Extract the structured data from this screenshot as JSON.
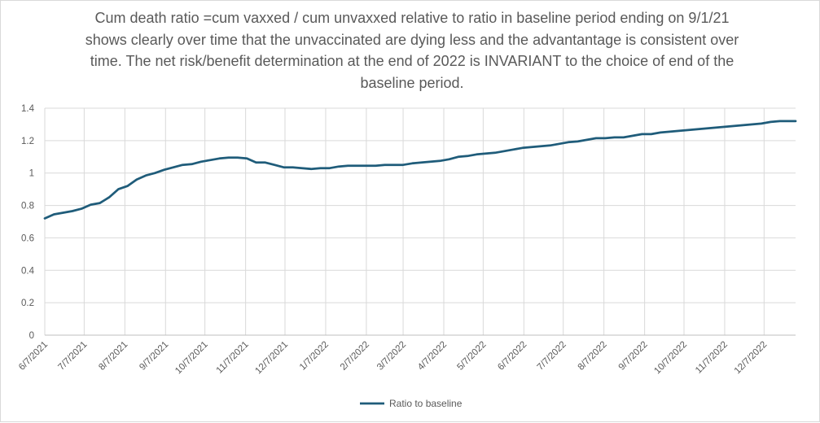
{
  "chart_data": {
    "type": "line",
    "title": "Cum death ratio =cum vaxxed / cum unvaxxed relative to ratio in baseline period ending on 9/1/21 shows clearly over time that the unvaccinated are dying less and the advantantage is consistent over time. The net risk/benefit determination at the end of 2022 is INVARIANT to the choice of end of the baseline period.",
    "xlabel": "",
    "ylabel": "",
    "ylim": [
      0,
      1.4
    ],
    "yticks": [
      "0",
      "0.2",
      "0.4",
      "0.6",
      "0.8",
      "1",
      "1.2",
      "1.4"
    ],
    "x_start": "6/7/2021",
    "x_end": "12/31/2022",
    "xticks": [
      "6/7/2021",
      "7/7/2021",
      "8/7/2021",
      "9/7/2021",
      "10/7/2021",
      "11/7/2021",
      "12/7/2021",
      "1/7/2022",
      "2/7/2022",
      "3/7/2022",
      "4/7/2022",
      "5/7/2022",
      "6/7/2022",
      "7/7/2022",
      "8/7/2022",
      "9/7/2022",
      "10/7/2022",
      "11/7/2022",
      "12/7/2022"
    ],
    "grid": true,
    "legend_position": "bottom",
    "series": [
      {
        "name": "Ratio to baseline",
        "color": "#1f5c7a",
        "x": [
          "6/7/2021",
          "6/14/2021",
          "6/21/2021",
          "6/28/2021",
          "7/5/2021",
          "7/12/2021",
          "7/19/2021",
          "7/26/2021",
          "8/2/2021",
          "8/9/2021",
          "8/16/2021",
          "8/23/2021",
          "8/30/2021",
          "9/6/2021",
          "9/13/2021",
          "9/20/2021",
          "9/27/2021",
          "10/4/2021",
          "10/11/2021",
          "10/18/2021",
          "10/25/2021",
          "11/1/2021",
          "11/8/2021",
          "11/15/2021",
          "11/22/2021",
          "11/29/2021",
          "12/6/2021",
          "12/13/2021",
          "12/20/2021",
          "12/27/2021",
          "1/3/2022",
          "1/10/2022",
          "1/17/2022",
          "1/24/2022",
          "1/31/2022",
          "2/7/2022",
          "2/14/2022",
          "2/21/2022",
          "2/28/2022",
          "3/7/2022",
          "3/14/2022",
          "3/21/2022",
          "3/28/2022",
          "4/4/2022",
          "4/11/2022",
          "4/18/2022",
          "4/25/2022",
          "5/2/2022",
          "5/9/2022",
          "5/16/2022",
          "5/23/2022",
          "5/30/2022",
          "6/6/2022",
          "6/13/2022",
          "6/20/2022",
          "6/27/2022",
          "7/4/2022",
          "7/11/2022",
          "7/18/2022",
          "7/25/2022",
          "8/1/2022",
          "8/8/2022",
          "8/15/2022",
          "8/22/2022",
          "8/29/2022",
          "9/5/2022",
          "9/12/2022",
          "9/19/2022",
          "9/26/2022",
          "10/3/2022",
          "10/10/2022",
          "10/17/2022",
          "10/24/2022",
          "10/31/2022",
          "11/7/2022",
          "11/14/2022",
          "11/21/2022",
          "11/28/2022",
          "12/5/2022",
          "12/12/2022",
          "12/19/2022",
          "12/26/2022",
          "12/31/2022"
        ],
        "values": [
          0.72,
          0.745,
          0.755,
          0.765,
          0.78,
          0.805,
          0.815,
          0.85,
          0.9,
          0.92,
          0.96,
          0.985,
          1.0,
          1.02,
          1.035,
          1.05,
          1.055,
          1.07,
          1.08,
          1.09,
          1.095,
          1.095,
          1.09,
          1.065,
          1.065,
          1.05,
          1.035,
          1.035,
          1.03,
          1.025,
          1.03,
          1.03,
          1.04,
          1.045,
          1.045,
          1.045,
          1.045,
          1.05,
          1.05,
          1.05,
          1.06,
          1.065,
          1.07,
          1.075,
          1.085,
          1.1,
          1.105,
          1.115,
          1.12,
          1.125,
          1.135,
          1.145,
          1.155,
          1.16,
          1.165,
          1.17,
          1.18,
          1.19,
          1.195,
          1.205,
          1.215,
          1.215,
          1.22,
          1.22,
          1.23,
          1.24,
          1.24,
          1.25,
          1.255,
          1.26,
          1.265,
          1.27,
          1.275,
          1.28,
          1.285,
          1.29,
          1.295,
          1.3,
          1.305,
          1.315,
          1.32,
          1.32,
          1.32
        ]
      }
    ]
  }
}
